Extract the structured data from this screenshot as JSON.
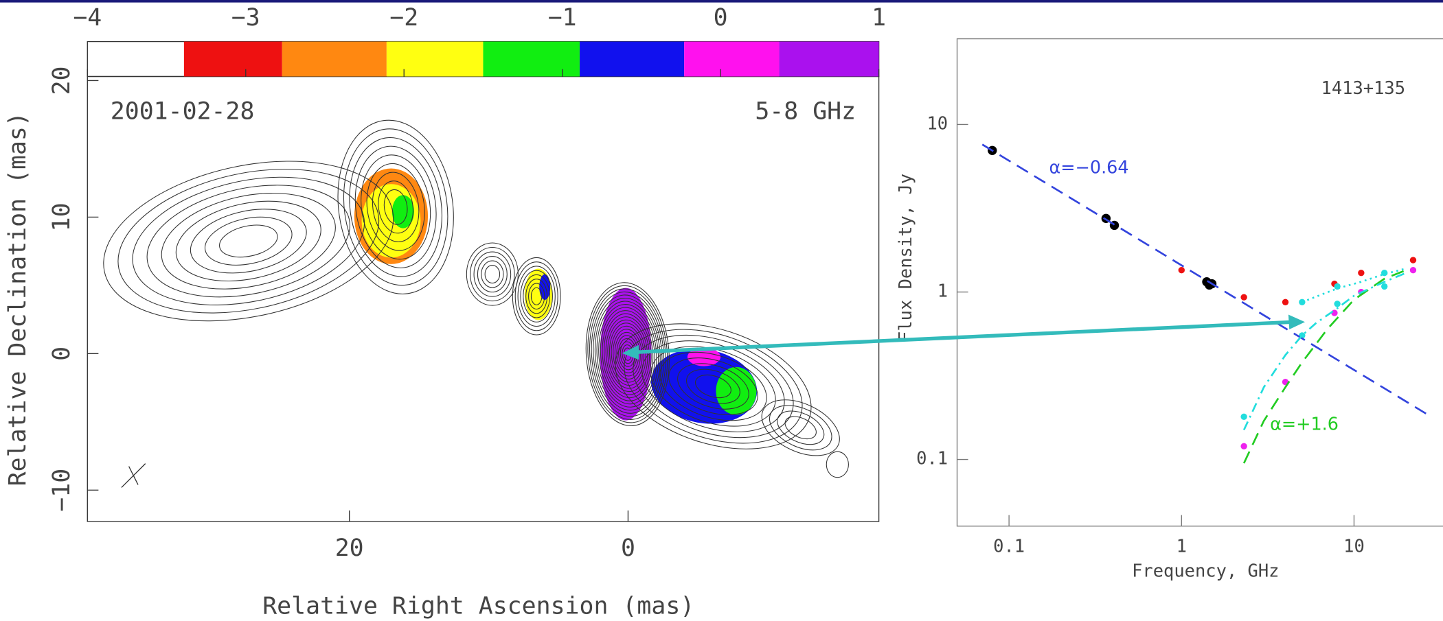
{
  "chart_data": [
    {
      "type": "contour-map",
      "annotations": [
        "2001-02-28",
        "5-8 GHz"
      ],
      "xlabel": "Relative Right Ascension (mas)",
      "ylabel": "Relative Declination (mas)",
      "xlim": [
        38.8,
        -18
      ],
      "xticks": [
        20,
        0
      ],
      "ylim": [
        -12.3,
        20.3
      ],
      "yticks": [
        20,
        10,
        0,
        {
          "value": -10,
          "label": "−10"
        }
      ],
      "colorbar": {
        "lim": [
          -4,
          1
        ],
        "ticks": [
          {
            "value": -4,
            "label": "−4"
          },
          {
            "value": -3,
            "label": "−3"
          },
          {
            "value": -2,
            "label": "−2"
          },
          {
            "value": -1,
            "label": "−1"
          },
          0,
          1
        ],
        "bounds": [
          -3.39,
          -2.77,
          -2.11,
          -1.5,
          -0.89,
          -0.23,
          0.37,
          1
        ],
        "colors": [
          "#ee1111",
          "#ff8811",
          "#ffff11",
          "#11ee11",
          "#1111ee",
          "#ff11ee",
          "#aa11ee"
        ]
      }
    },
    {
      "type": "scatter",
      "log_x": true,
      "log_y": true,
      "title": "1413+135",
      "xlabel": "Frequency, GHz",
      "ylabel": "Flux Density, Jy",
      "annotations": [
        {
          "text": "α=−0.64",
          "color": "#3344dd"
        },
        {
          "text": "α=+1.6",
          "color": "#22cc22"
        }
      ],
      "xlim": [
        0.05,
        38
      ],
      "xticks": [
        0.1,
        1,
        10
      ],
      "ylim": [
        0.04,
        32.5
      ],
      "yticks": [
        0.1,
        1,
        10
      ],
      "series": [
        {
          "mode": "markers",
          "color": "#000000",
          "x": [
            0.08,
            0.365,
            0.408,
            1.4,
            1.45,
            1.5
          ],
          "values": [
            7.0,
            2.75,
            2.5,
            1.15,
            1.1,
            1.12
          ]
        },
        {
          "mode": "markers",
          "color": "#ee1111",
          "x": [
            1.0,
            2.3,
            4.0,
            7.7,
            11,
            22
          ],
          "values": [
            1.35,
            0.93,
            0.87,
            1.12,
            1.3,
            1.55
          ]
        },
        {
          "mode": "markers",
          "color": "#22dddd",
          "x": [
            2.3,
            5.0,
            5.0,
            8.0,
            8.0,
            15,
            15
          ],
          "values": [
            0.18,
            0.87,
            0.55,
            1.08,
            0.85,
            1.3,
            1.08
          ]
        },
        {
          "mode": "markers",
          "color": "#ee22ee",
          "x": [
            2.3,
            4.0,
            7.7,
            11,
            22
          ],
          "values": [
            0.12,
            0.29,
            0.75,
            1.0,
            1.35
          ]
        },
        {
          "mode": "dashed",
          "color": "#3344dd",
          "x": [
            0.07,
            28
          ],
          "values": [
            7.6,
            0.18
          ]
        },
        {
          "mode": "dashed",
          "color": "#22cc22",
          "x": [
            2.3,
            3,
            4,
            5,
            7,
            10,
            15,
            20
          ],
          "values": [
            0.095,
            0.17,
            0.27,
            0.38,
            0.6,
            0.9,
            1.2,
            1.35
          ]
        },
        {
          "mode": "dashdot",
          "color": "#22dddd",
          "x": [
            2.3,
            3,
            4,
            5,
            6,
            8,
            10,
            15,
            20
          ],
          "values": [
            0.15,
            0.27,
            0.42,
            0.55,
            0.65,
            0.8,
            0.95,
            1.15,
            1.3
          ]
        },
        {
          "mode": "dotted",
          "color": "#22dddd",
          "x": [
            5,
            8,
            11,
            15,
            20
          ],
          "values": [
            0.87,
            1.05,
            1.15,
            1.28,
            1.38
          ]
        }
      ]
    }
  ]
}
